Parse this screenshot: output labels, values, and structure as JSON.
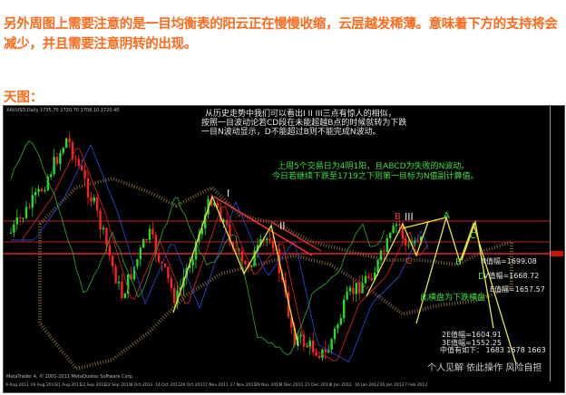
{
  "article": {
    "paragraph": "另外周图上需要注意的是一目均衡表的阳云正在慢慢收缩，云层越发稀薄。意味着下方的支持将会减少，并且需要注意阴转的出现。",
    "chart_heading": "天图："
  },
  "chart": {
    "header": "XAUUSD,Daily 1735.70 1720.70 1708.10 1720.40",
    "footer": "MetaTrader 4, © 2001-2011 MetaQuotes Software Corp.",
    "dates": [
      "9 Aug 2011",
      "19 Aug 2011",
      "31 Aug 2011",
      "12 Sep 2011",
      "22 Sep 2011",
      "4 Oct 2011",
      "14 Oct 2011",
      "26 Oct 2011",
      "7 Nov 2011",
      "17 Nov 2011",
      "29 Nov 2011",
      "9 Dec 2011",
      "21 Dec 2011",
      "4 Jan 2012",
      "16 Jan 2012",
      "26 Jan 2012",
      "7 Feb 2012"
    ],
    "notes_white": [
      "从历史走势中我们可以看出I II III三点有惊人的相似，",
      "按照一目波动论若CD段在未能超越B点的时候就转为下跌",
      "一目N波动显示，D不能超过B则不能完成N波动。"
    ],
    "notes_green": [
      "上周5个交易日为4阴1阳，且ABCD为失败的N波动。",
      "今日若继续下跌至1719之下则第一目标为N值副计算值。"
    ],
    "wave_labels": {
      "I": "I",
      "II": "II",
      "III": "III",
      "B_red": "B",
      "C_red": "C",
      "A": "A",
      "B": "B",
      "C": "C",
      "D": "D"
    },
    "targets": {
      "n": "N值幅=1699.08",
      "v": "V值幅=1668.72",
      "e": "E值幅=1657.57",
      "consolidation": "此横盘为下跌横盘",
      "e2": "2E值幅=1604.91",
      "e3": "3E值幅=1552.25",
      "mid": "中值有如下： 1683 1678 1663"
    },
    "disclaimer": "个人见解 依此操作 风险自担",
    "colors": {
      "bull": "#22dd22",
      "bear": "#ff2020",
      "wave": "#e8e83a",
      "resistance": "#ff3030",
      "cloud": "#c8a060"
    }
  }
}
